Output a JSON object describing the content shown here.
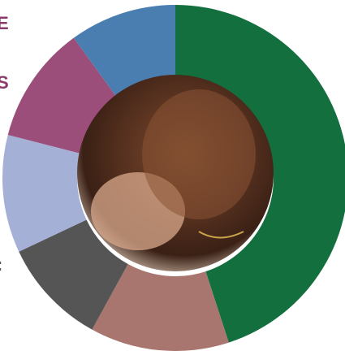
{
  "chart_data": {
    "type": "donut",
    "categories": [
      null,
      null,
      null,
      null,
      null,
      null
    ],
    "values": [
      45,
      13,
      10,
      11,
      11,
      10
    ],
    "colors": [
      "#136f3e",
      "#a8766f",
      "#555555",
      "#a4b0d6",
      "#9b4e7a",
      "#4a7eb0"
    ],
    "annotations": [
      {
        "text": "E",
        "color": "#8a3b6b"
      },
      {
        "text": "S",
        "color": "#8a3b6b"
      },
      {
        "text": ":",
        "color": "#555555"
      }
    ]
  }
}
